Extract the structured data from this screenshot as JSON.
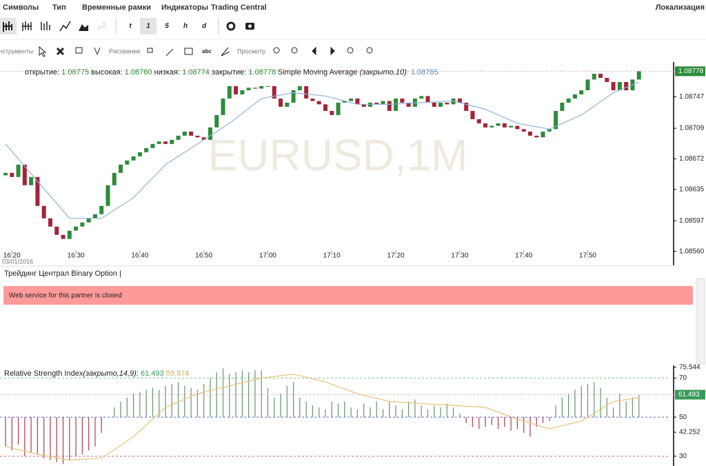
{
  "menu": [
    "Символы",
    "Тип",
    "Временные рамки",
    "Индикаторы",
    "Trading Central"
  ],
  "localization": "Локализация",
  "timeframes": [
    "t",
    "1",
    "5",
    "h",
    "d"
  ],
  "toolbar_labels": [
    "Инструменты",
    "Рисование",
    "Просмотр"
  ],
  "price_header": {
    "open_label": "открытие:",
    "open": "1.08775",
    "high_label": "высокая:",
    "high": "1.08780",
    "low_label": "низкая:",
    "low": "1.08774",
    "close_label": "закрытие:",
    "close": "1.08778",
    "sma_name": "Simple Moving Average",
    "sma_params": "(закрыто,10)",
    "sma_value": ": 1.08765"
  },
  "watermark": "EURUSD,1M",
  "date_label": "03/01/2016",
  "panel2": {
    "title": "Трейдинг Централ Binary Option |",
    "message": "Web service for this partner is closed"
  },
  "rsi_header": {
    "name": "Relative Strength Index",
    "params": "(закрыто,14,9):",
    "value": "61.493",
    "signal": "59.974"
  },
  "chart_data": [
    {
      "type": "candlestick",
      "categories": [
        null,
        "16:20",
        null,
        null,
        null,
        null,
        null,
        null,
        null,
        null,
        null,
        "16:30",
        null,
        null,
        null,
        null,
        null,
        null,
        null,
        null,
        null,
        "16:40",
        null,
        null,
        null,
        null,
        null,
        null,
        null,
        null,
        null,
        "16:50",
        null,
        null,
        null,
        null,
        null,
        null,
        null,
        null,
        null,
        "17:00",
        null,
        null,
        null,
        null,
        null,
        null,
        null,
        null,
        null,
        "17:10",
        null,
        null,
        null,
        null,
        null,
        null,
        null,
        null,
        null,
        "17:20",
        null,
        null,
        null,
        null,
        null,
        null,
        null,
        null,
        null,
        "17:30",
        null,
        null,
        null,
        null,
        null,
        null,
        null,
        null,
        null,
        "17:40",
        null,
        null,
        null,
        null,
        null,
        null,
        null,
        null,
        null,
        "17:50",
        null,
        null,
        null,
        null,
        null,
        null,
        null,
        null
      ],
      "first_open": 1.08652,
      "closes": [
        1.08655,
        1.0865,
        1.08665,
        1.0864,
        1.0865,
        1.08615,
        1.086,
        1.0859,
        1.0858,
        1.08575,
        1.08585,
        1.0859,
        1.08595,
        1.086,
        1.08605,
        1.08615,
        1.0864,
        1.08655,
        1.08665,
        1.0867,
        1.08675,
        1.0868,
        1.08685,
        1.0869,
        1.08693,
        1.0869,
        1.08695,
        1.087,
        1.08705,
        1.087,
        1.08698,
        1.08695,
        1.0871,
        1.08725,
        1.08745,
        1.0876,
        1.0875,
        1.08755,
        1.08758,
        1.08757,
        1.0876,
        1.0876,
        1.08745,
        1.08735,
        1.0874,
        1.08755,
        1.0876,
        1.08745,
        1.08742,
        1.08738,
        1.0873,
        1.08725,
        1.0874,
        1.08742,
        1.08745,
        1.08738,
        1.08735,
        1.0874,
        1.08738,
        1.08742,
        1.0873,
        1.08745,
        1.0874,
        1.08735,
        1.08745,
        1.08748,
        1.0874,
        1.08735,
        1.0874,
        1.08738,
        1.08745,
        1.0874,
        1.0873,
        1.0872,
        1.08715,
        1.0871,
        1.08712,
        1.08715,
        1.0871,
        1.08712,
        1.08708,
        1.08705,
        1.087,
        1.08698,
        1.08705,
        1.08708,
        1.0873,
        1.0874,
        1.08745,
        1.0875,
        1.08755,
        1.08768,
        1.08775,
        1.0877,
        1.08765,
        1.08755,
        1.08765,
        1.08755,
        1.08768,
        1.08778
      ],
      "up_color": "#2e8b3a",
      "down_color": "#a3243b",
      "sma": {
        "color": "#8fb3d9",
        "x": [
          0,
          5,
          10,
          15,
          20,
          25,
          30,
          35,
          40,
          45,
          50,
          55,
          60,
          65,
          70,
          75,
          80,
          85,
          90,
          95,
          99
        ],
        "values": [
          1.0869,
          1.08645,
          1.086,
          1.086,
          1.08625,
          1.08665,
          1.0869,
          1.08715,
          1.08745,
          1.08752,
          1.08748,
          1.08738,
          1.08738,
          1.0874,
          1.08742,
          1.08732,
          1.08715,
          1.08708,
          1.08725,
          1.08752,
          1.08765
        ]
      },
      "ylim": [
        1.08543,
        1.08785
      ],
      "yticks": [
        1.08747,
        1.08709,
        1.08672,
        1.08635,
        1.08597,
        {
          "value": 1.0856,
          "label": "1.08560"
        }
      ],
      "current_price": 1.08778,
      "current_color": "#2e8b3a"
    },
    {
      "type": "histogram-line",
      "values": [
        35,
        33,
        36,
        30,
        32,
        31,
        29,
        28,
        27,
        26,
        28,
        30,
        31,
        33,
        35,
        42,
        50,
        55,
        58,
        60,
        62,
        63,
        64,
        65,
        64,
        66,
        67,
        68,
        66,
        65,
        64,
        67,
        70,
        73,
        75,
        72,
        73,
        74,
        73,
        74,
        74,
        65,
        60,
        62,
        66,
        68,
        60,
        58,
        56,
        55,
        54,
        58,
        57,
        58,
        55,
        54,
        57,
        55,
        58,
        54,
        58,
        56,
        54,
        58,
        59,
        56,
        54,
        56,
        55,
        57,
        55,
        52,
        47,
        45,
        44,
        45,
        46,
        44,
        45,
        43,
        44,
        42,
        40,
        45,
        47,
        48,
        56,
        60,
        62,
        64,
        66,
        67,
        68,
        65,
        60,
        55,
        62,
        58,
        60,
        61.493
      ],
      "base": 50,
      "up_color": "#6f9a78",
      "down_color": "#b0485a",
      "signal": {
        "color": "#e8c07a",
        "x": [
          0,
          5,
          10,
          15,
          20,
          25,
          30,
          35,
          40,
          45,
          50,
          55,
          60,
          65,
          70,
          75,
          80,
          85,
          90,
          95,
          99
        ],
        "values": [
          35,
          31,
          28,
          29,
          40,
          55,
          62,
          66,
          70,
          72,
          68,
          62,
          58,
          57,
          56,
          55,
          49,
          44,
          48,
          58,
          59.974
        ]
      },
      "ylim": [
        25,
        76.5
      ],
      "yticks": [
        75.544,
        70,
        50,
        42.252,
        30
      ],
      "levels": [
        70,
        50,
        30
      ],
      "level_colors": [
        "#7fc97f",
        "#5566bb",
        "#e06070"
      ],
      "current_value": 61.493,
      "current_color": "#3a9a5a"
    }
  ]
}
